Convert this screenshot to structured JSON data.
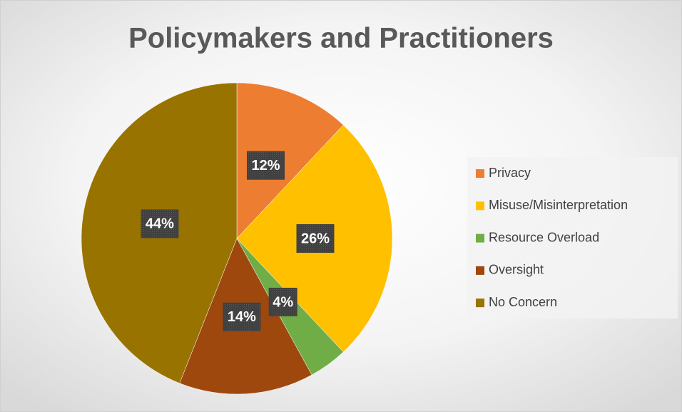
{
  "chart_data": {
    "type": "pie",
    "title": "Policymakers and Practitioners",
    "categories": [
      "Privacy",
      "Misuse/Misinterpretation",
      "Resource Overload",
      "Oversight",
      "No Concern"
    ],
    "values": [
      12,
      26,
      4,
      14,
      44
    ],
    "value_labels": [
      "12%",
      "26%",
      "4%",
      "14%",
      "44%"
    ],
    "colors": [
      "#ed7d31",
      "#ffc000",
      "#70ad47",
      "#9e480e",
      "#997300"
    ],
    "legend": "right"
  }
}
